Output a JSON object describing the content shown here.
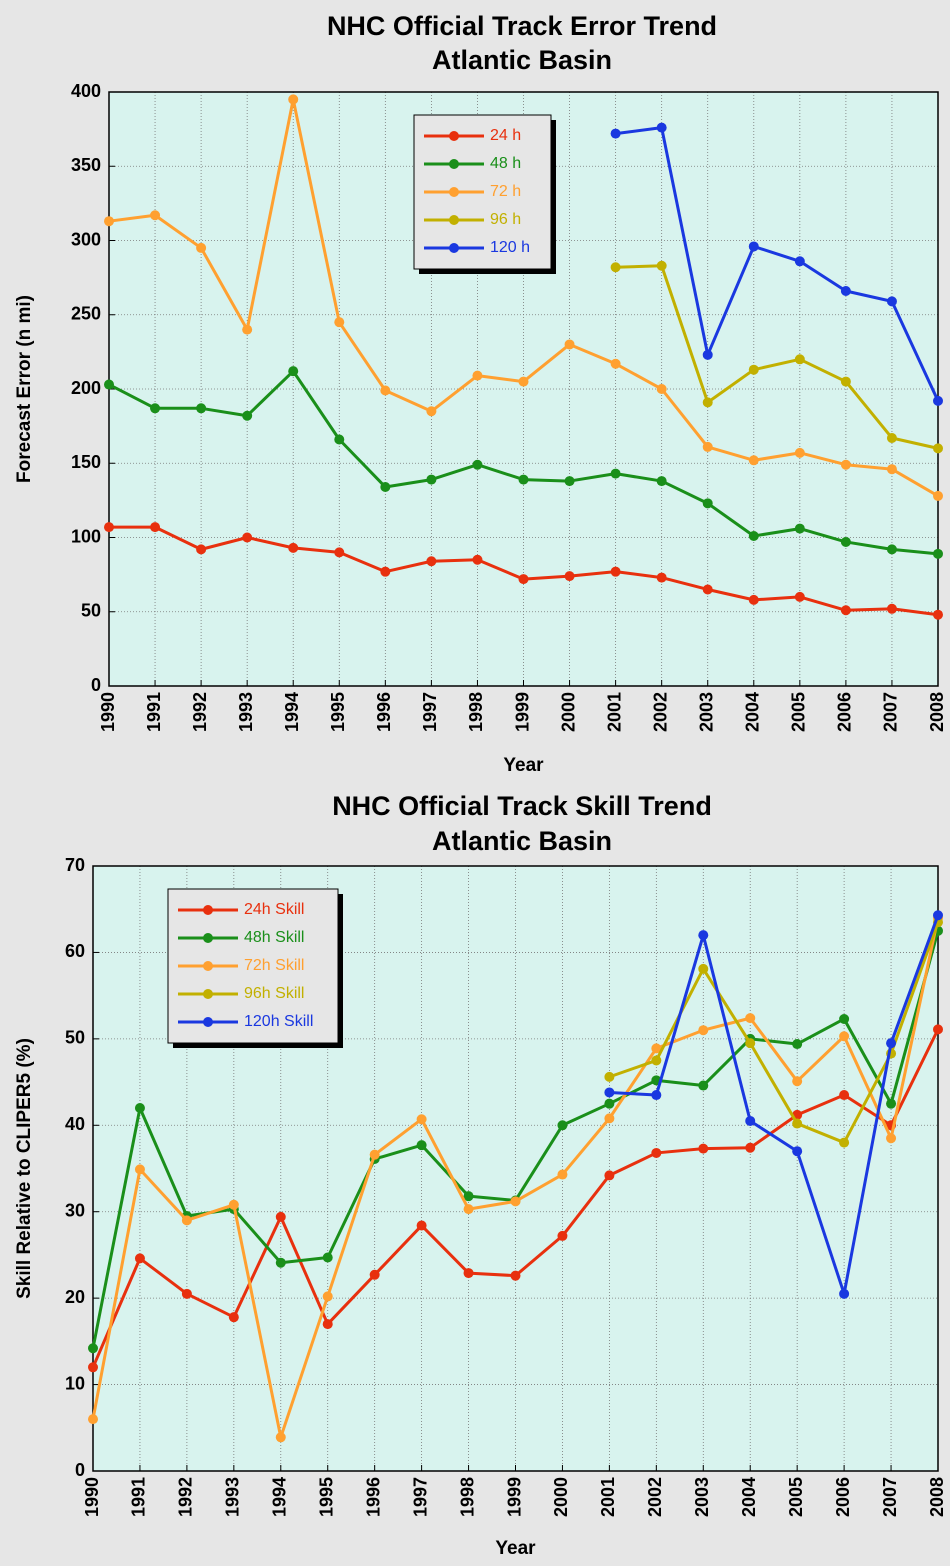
{
  "chart_data": [
    {
      "type": "line",
      "title": "NHC Official Track Error Trend",
      "subtitle": "Atlantic Basin",
      "x_label": "Year",
      "y_label": "Forecast Error (n mi)",
      "x": [
        1990,
        1991,
        1992,
        1993,
        1994,
        1995,
        1996,
        1997,
        1998,
        1999,
        2000,
        2001,
        2002,
        2003,
        2004,
        2005,
        2006,
        2007,
        2008
      ],
      "xlim": [
        1990,
        2008
      ],
      "xticks": [
        1990,
        1991,
        1992,
        1993,
        1994,
        1995,
        1996,
        1997,
        1998,
        1999,
        2000,
        2001,
        2002,
        2003,
        2004,
        2005,
        2006,
        2007,
        2008
      ],
      "ylim": [
        0,
        400
      ],
      "yticks": [
        0,
        50,
        100,
        150,
        200,
        250,
        300,
        350,
        400
      ],
      "grid": true,
      "legend": "upper center",
      "background": "#d8f3ee",
      "series": [
        {
          "name": "24 h",
          "color": "#e8300e",
          "values": [
            107,
            107,
            92,
            100,
            93,
            90,
            77,
            84,
            85,
            72,
            74,
            77,
            73,
            65,
            58,
            60,
            51,
            52,
            48
          ]
        },
        {
          "name": "48 h",
          "color": "#1a8f1a",
          "values": [
            203,
            187,
            187,
            182,
            212,
            166,
            134,
            139,
            149,
            139,
            138,
            143,
            138,
            123,
            101,
            106,
            97,
            92,
            89
          ]
        },
        {
          "name": "72 h",
          "color": "#ffa030",
          "values": [
            313,
            317,
            295,
            240,
            395,
            245,
            199,
            185,
            209,
            205,
            230,
            217,
            200,
            161,
            152,
            157,
            149,
            146,
            128
          ]
        },
        {
          "name": "96 h",
          "color": "#c2b000",
          "values": [
            null,
            null,
            null,
            null,
            null,
            null,
            null,
            null,
            null,
            null,
            null,
            282,
            283,
            191,
            213,
            220,
            205,
            167,
            160
          ]
        },
        {
          "name": "120 h",
          "color": "#1a38e0",
          "values": [
            null,
            null,
            null,
            null,
            null,
            null,
            null,
            null,
            null,
            null,
            null,
            372,
            376,
            223,
            296,
            286,
            266,
            259,
            192
          ]
        }
      ]
    },
    {
      "type": "line",
      "title": "NHC Official Track Skill Trend",
      "subtitle": "Atlantic Basin",
      "x_label": "Year",
      "y_label": "Skill Relative to CLIPER5 (%)",
      "x": [
        1990,
        1991,
        1992,
        1993,
        1994,
        1995,
        1996,
        1997,
        1998,
        1999,
        2000,
        2001,
        2002,
        2003,
        2004,
        2005,
        2006,
        2007,
        2008
      ],
      "xlim": [
        1990,
        2008
      ],
      "xticks": [
        1990,
        1991,
        1992,
        1993,
        1994,
        1995,
        1996,
        1997,
        1998,
        1999,
        2000,
        2001,
        2002,
        2003,
        2004,
        2005,
        2006,
        2007,
        2008
      ],
      "ylim": [
        0,
        70
      ],
      "yticks": [
        0,
        10,
        20,
        30,
        40,
        50,
        60,
        70
      ],
      "grid": true,
      "legend": "upper left",
      "background": "#d8f3ee",
      "series": [
        {
          "name": "24h Skill",
          "color": "#e8300e",
          "values": [
            12,
            24.6,
            20.5,
            17.8,
            29.4,
            17,
            22.7,
            28.4,
            22.9,
            22.6,
            27.2,
            34.2,
            36.8,
            37.3,
            37.4,
            41.2,
            43.5,
            40,
            51.1
          ]
        },
        {
          "name": "48h Skill",
          "color": "#1a8f1a",
          "values": [
            14.2,
            42,
            29.5,
            30.3,
            24.1,
            24.7,
            36.1,
            37.7,
            31.8,
            31.3,
            40,
            42.5,
            45.2,
            44.6,
            50,
            49.4,
            52.3,
            42.5,
            62.5
          ]
        },
        {
          "name": "72h Skill",
          "color": "#ffa030",
          "values": [
            6,
            34.9,
            29,
            30.8,
            3.9,
            20.2,
            36.6,
            40.7,
            30.3,
            31.2,
            34.3,
            40.8,
            48.9,
            51,
            52.4,
            45.1,
            50.3,
            38.5,
            64
          ]
        },
        {
          "name": "96h Skill",
          "color": "#c2b000",
          "values": [
            null,
            null,
            null,
            null,
            null,
            null,
            null,
            null,
            null,
            null,
            null,
            45.6,
            47.5,
            58.1,
            49.5,
            40.2,
            38,
            48.3,
            63.5
          ]
        },
        {
          "name": "120h Skill",
          "color": "#1a38e0",
          "values": [
            null,
            null,
            null,
            null,
            null,
            null,
            null,
            null,
            null,
            null,
            null,
            43.8,
            43.5,
            62,
            40.5,
            37,
            20.5,
            49.5,
            64.3
          ]
        }
      ]
    }
  ]
}
